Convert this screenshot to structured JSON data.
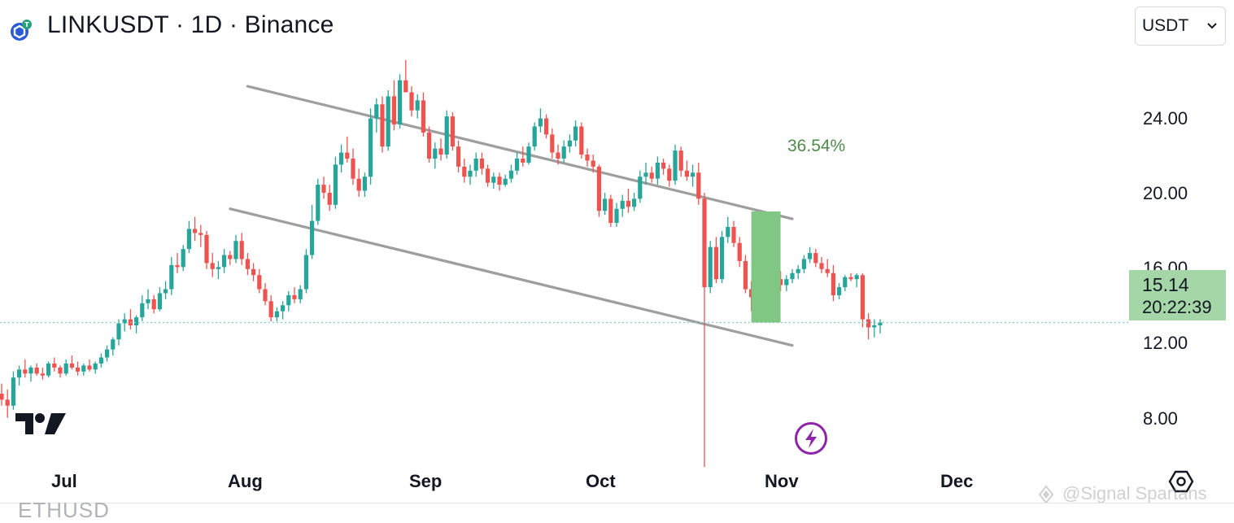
{
  "header": {
    "title": "LINKUSDT · 1D · Binance",
    "currency_selected": "USDT"
  },
  "icons": {
    "symbol_logo": "chainlink-tether-icon",
    "currency_chevron": "chevron-down-icon",
    "brand_logo": "tradingview-logo",
    "flash": "lightning-bolt-icon",
    "settings": "hexagon-settings-icon"
  },
  "watermark": "@Signal Spartans",
  "cut_off_symbol": "ETHUSD",
  "colors": {
    "up": "#26a69a",
    "down": "#ef5350",
    "channel": "#9e9e9e",
    "target_box": "#81c784",
    "price_box": "#a5d6a7",
    "price_line": "#80cbc4",
    "percent_text": "#4f8a4a",
    "flash_icon": "#8e24aa"
  },
  "chart_data": {
    "type": "candlestick",
    "symbol": "LINKUSDT",
    "interval": "1D",
    "exchange": "Binance",
    "y_axis": {
      "ticks": [
        "24.00",
        "20.00",
        "16.00",
        "12.00",
        "8.00"
      ],
      "tick_values": [
        24,
        20,
        16,
        12,
        8
      ],
      "range": [
        6.74,
        29.98
      ]
    },
    "x_axis": {
      "ticks": [
        "Jul",
        "Aug",
        "Sep",
        "Oct",
        "Nov",
        "Dec"
      ],
      "tick_dates": [
        "2024-07-01",
        "2024-08-01",
        "2024-09-01",
        "2024-10-01",
        "2024-11-01",
        "2024-12-01"
      ]
    },
    "current_price": "15.14",
    "countdown": "20:22:39",
    "annotations": {
      "target_percent": "36.54%",
      "target_box": {
        "date_from": "2024-11-05",
        "date_to": "2024-11-10",
        "price_from": 15.14,
        "price_to": 20.67
      },
      "channel_upper": [
        {
          "date": "2024-08-11",
          "price": 26.9
        },
        {
          "date": "2024-11-12",
          "price": 20.3
        }
      ],
      "channel_lower": [
        {
          "date": "2024-08-08",
          "price": 20.8
        },
        {
          "date": "2024-11-12",
          "price": 14.0
        }
      ]
    },
    "grid": false,
    "candles_ohlc": [
      [
        11.6,
        12.1,
        11.0,
        11.3
      ],
      [
        11.3,
        11.8,
        10.4,
        11.0
      ],
      [
        11.0,
        12.7,
        10.8,
        12.4
      ],
      [
        12.4,
        13.0,
        12.0,
        12.8
      ],
      [
        12.8,
        13.3,
        12.4,
        12.6
      ],
      [
        12.6,
        13.0,
        12.2,
        12.9
      ],
      [
        12.9,
        13.1,
        12.5,
        12.6
      ],
      [
        12.6,
        12.9,
        12.3,
        12.5
      ],
      [
        12.5,
        13.2,
        12.4,
        13.1
      ],
      [
        13.1,
        13.4,
        12.7,
        12.9
      ],
      [
        12.9,
        13.0,
        12.4,
        12.6
      ],
      [
        12.6,
        13.3,
        12.5,
        13.1
      ],
      [
        13.1,
        13.5,
        12.8,
        12.9
      ],
      [
        12.9,
        13.2,
        12.5,
        12.7
      ],
      [
        12.7,
        13.1,
        12.5,
        13.0
      ],
      [
        13.0,
        13.3,
        12.7,
        12.8
      ],
      [
        12.8,
        13.2,
        12.6,
        13.1
      ],
      [
        13.1,
        13.6,
        12.9,
        13.4
      ],
      [
        13.4,
        14.0,
        13.2,
        13.8
      ],
      [
        13.8,
        14.4,
        13.5,
        14.3
      ],
      [
        14.3,
        15.3,
        14.0,
        15.1
      ],
      [
        15.1,
        15.6,
        14.7,
        15.3
      ],
      [
        15.3,
        15.8,
        14.8,
        15.0
      ],
      [
        15.0,
        15.5,
        14.6,
        15.4
      ],
      [
        15.4,
        16.5,
        15.2,
        16.1
      ],
      [
        16.1,
        16.8,
        15.8,
        16.3
      ],
      [
        16.3,
        16.5,
        15.6,
        15.8
      ],
      [
        15.8,
        16.9,
        15.7,
        16.6
      ],
      [
        16.6,
        17.2,
        16.3,
        16.8
      ],
      [
        16.8,
        18.4,
        16.5,
        18.0
      ],
      [
        18.0,
        18.6,
        17.6,
        17.9
      ],
      [
        17.9,
        19.0,
        17.7,
        18.8
      ],
      [
        18.8,
        20.2,
        18.6,
        19.8
      ],
      [
        19.8,
        20.4,
        19.2,
        19.6
      ],
      [
        19.6,
        20.0,
        18.9,
        19.5
      ],
      [
        19.5,
        19.7,
        17.8,
        18.1
      ],
      [
        18.1,
        18.6,
        17.4,
        17.8
      ],
      [
        17.8,
        18.2,
        17.3,
        17.9
      ],
      [
        17.9,
        18.8,
        17.6,
        18.5
      ],
      [
        18.5,
        18.7,
        18.0,
        18.3
      ],
      [
        18.3,
        19.5,
        18.1,
        19.2
      ],
      [
        19.2,
        19.6,
        18.0,
        18.3
      ],
      [
        18.3,
        18.6,
        17.5,
        17.8
      ],
      [
        17.8,
        18.1,
        17.2,
        17.5
      ],
      [
        17.5,
        17.8,
        16.6,
        16.8
      ],
      [
        16.8,
        17.1,
        16.0,
        16.2
      ],
      [
        16.2,
        16.5,
        15.2,
        15.4
      ],
      [
        15.4,
        15.9,
        15.2,
        15.7
      ],
      [
        15.7,
        16.2,
        15.3,
        16.0
      ],
      [
        16.0,
        16.7,
        15.7,
        16.5
      ],
      [
        16.5,
        16.9,
        16.1,
        16.3
      ],
      [
        16.3,
        17.0,
        16.1,
        16.8
      ],
      [
        16.8,
        18.8,
        16.6,
        18.5
      ],
      [
        18.5,
        21.0,
        18.3,
        20.2
      ],
      [
        20.2,
        22.3,
        20.0,
        22.0
      ],
      [
        22.0,
        22.4,
        21.3,
        21.6
      ],
      [
        21.6,
        22.0,
        20.7,
        21.0
      ],
      [
        21.0,
        23.4,
        20.8,
        23.0
      ],
      [
        23.0,
        24.0,
        22.6,
        23.6
      ],
      [
        23.6,
        24.4,
        23.1,
        23.3
      ],
      [
        23.3,
        23.8,
        22.0,
        22.3
      ],
      [
        22.3,
        22.8,
        21.4,
        21.7
      ],
      [
        21.7,
        22.6,
        21.4,
        22.4
      ],
      [
        22.4,
        25.8,
        22.0,
        25.3
      ],
      [
        25.3,
        26.3,
        24.6,
        26.0
      ],
      [
        26.0,
        26.4,
        23.6,
        23.9
      ],
      [
        23.9,
        26.7,
        23.7,
        26.4
      ],
      [
        26.4,
        27.2,
        24.7,
        25.0
      ],
      [
        25.0,
        27.5,
        24.8,
        27.2
      ],
      [
        27.2,
        28.2,
        26.6,
        26.6
      ],
      [
        26.6,
        26.9,
        25.4,
        25.7
      ],
      [
        25.7,
        26.5,
        25.3,
        26.2
      ],
      [
        26.2,
        26.6,
        24.4,
        24.6
      ],
      [
        24.6,
        24.9,
        23.1,
        23.3
      ],
      [
        23.3,
        24.1,
        22.8,
        23.8
      ],
      [
        23.8,
        24.3,
        23.2,
        23.5
      ],
      [
        23.5,
        25.7,
        23.3,
        25.4
      ],
      [
        25.4,
        25.6,
        23.7,
        23.9
      ],
      [
        23.9,
        24.2,
        22.6,
        22.9
      ],
      [
        22.9,
        23.3,
        22.1,
        22.4
      ],
      [
        22.4,
        23.0,
        22.0,
        22.7
      ],
      [
        22.7,
        23.6,
        22.4,
        23.3
      ],
      [
        23.3,
        23.6,
        22.5,
        22.8
      ],
      [
        22.8,
        23.0,
        21.9,
        22.1
      ],
      [
        22.1,
        22.6,
        21.8,
        22.4
      ],
      [
        22.4,
        22.6,
        21.7,
        22.0
      ],
      [
        22.0,
        22.5,
        21.9,
        22.3
      ],
      [
        22.3,
        23.0,
        22.1,
        22.7
      ],
      [
        22.7,
        23.6,
        22.5,
        23.3
      ],
      [
        23.3,
        23.9,
        22.9,
        23.1
      ],
      [
        23.1,
        24.1,
        23.0,
        23.9
      ],
      [
        23.9,
        25.1,
        23.7,
        24.9
      ],
      [
        24.9,
        25.8,
        24.6,
        25.3
      ],
      [
        25.3,
        25.5,
        24.3,
        24.5
      ],
      [
        24.5,
        24.8,
        23.3,
        23.6
      ],
      [
        23.6,
        24.0,
        23.0,
        23.3
      ],
      [
        23.3,
        24.2,
        23.1,
        23.9
      ],
      [
        23.9,
        24.5,
        23.6,
        24.2
      ],
      [
        24.2,
        25.2,
        23.9,
        24.9
      ],
      [
        24.9,
        25.1,
        23.3,
        23.5
      ],
      [
        23.5,
        23.8,
        22.9,
        23.2
      ],
      [
        23.2,
        23.5,
        22.6,
        22.9
      ],
      [
        22.9,
        23.0,
        20.4,
        20.7
      ],
      [
        20.7,
        21.6,
        20.5,
        21.3
      ],
      [
        21.3,
        21.5,
        19.9,
        20.1
      ],
      [
        20.1,
        21.1,
        19.9,
        20.8
      ],
      [
        20.8,
        21.5,
        20.4,
        21.2
      ],
      [
        21.2,
        21.8,
        20.6,
        20.9
      ],
      [
        20.9,
        21.6,
        20.7,
        21.3
      ],
      [
        21.3,
        22.7,
        21.1,
        22.4
      ],
      [
        22.4,
        23.1,
        22.0,
        22.6
      ],
      [
        22.6,
        22.9,
        22.1,
        22.3
      ],
      [
        22.3,
        23.4,
        22.0,
        23.1
      ],
      [
        23.1,
        23.3,
        22.5,
        22.8
      ],
      [
        22.8,
        23.0,
        21.9,
        22.2
      ],
      [
        22.2,
        24.0,
        22.0,
        23.7
      ],
      [
        23.7,
        23.9,
        22.4,
        22.7
      ],
      [
        22.7,
        23.2,
        22.2,
        22.4
      ],
      [
        22.4,
        23.0,
        21.9,
        22.6
      ],
      [
        22.6,
        23.1,
        21.0,
        21.3
      ],
      [
        21.3,
        21.6,
        7.95,
        16.9
      ],
      [
        16.9,
        19.2,
        16.6,
        18.9
      ],
      [
        18.9,
        19.4,
        17.1,
        17.3
      ],
      [
        17.3,
        19.7,
        17.1,
        19.4
      ],
      [
        19.4,
        20.4,
        19.1,
        19.9
      ],
      [
        19.9,
        20.2,
        18.9,
        19.1
      ],
      [
        19.1,
        19.4,
        17.9,
        18.2
      ],
      [
        18.2,
        18.5,
        16.6,
        16.8
      ],
      [
        16.8,
        17.2,
        15.7,
        16.4
      ],
      [
        16.4,
        17.6,
        16.2,
        17.4
      ],
      [
        17.4,
        18.0,
        16.9,
        17.7
      ],
      [
        17.7,
        19.3,
        17.5,
        18.9
      ],
      [
        18.9,
        19.0,
        17.1,
        17.3
      ],
      [
        17.3,
        17.7,
        16.7,
        17.0
      ],
      [
        17.0,
        17.5,
        16.7,
        17.3
      ],
      [
        17.3,
        17.8,
        17.1,
        17.6
      ],
      [
        17.6,
        18.0,
        17.3,
        17.8
      ],
      [
        17.8,
        18.5,
        17.6,
        18.3
      ],
      [
        18.3,
        18.9,
        18.1,
        18.6
      ],
      [
        18.6,
        18.8,
        17.9,
        18.1
      ],
      [
        18.1,
        18.4,
        17.6,
        17.8
      ],
      [
        17.8,
        18.3,
        17.4,
        17.6
      ],
      [
        17.6,
        18.0,
        16.2,
        16.5
      ],
      [
        16.5,
        17.1,
        16.3,
        16.9
      ],
      [
        16.9,
        17.5,
        16.7,
        17.4
      ],
      [
        17.4,
        17.6,
        17.2,
        17.3
      ],
      [
        17.3,
        17.6,
        16.9,
        17.5
      ],
      [
        17.5,
        17.6,
        14.9,
        15.3
      ],
      [
        15.3,
        15.6,
        14.3,
        14.9
      ],
      [
        14.9,
        15.3,
        14.4,
        15.0
      ],
      [
        15.0,
        15.3,
        14.6,
        15.14
      ]
    ]
  }
}
